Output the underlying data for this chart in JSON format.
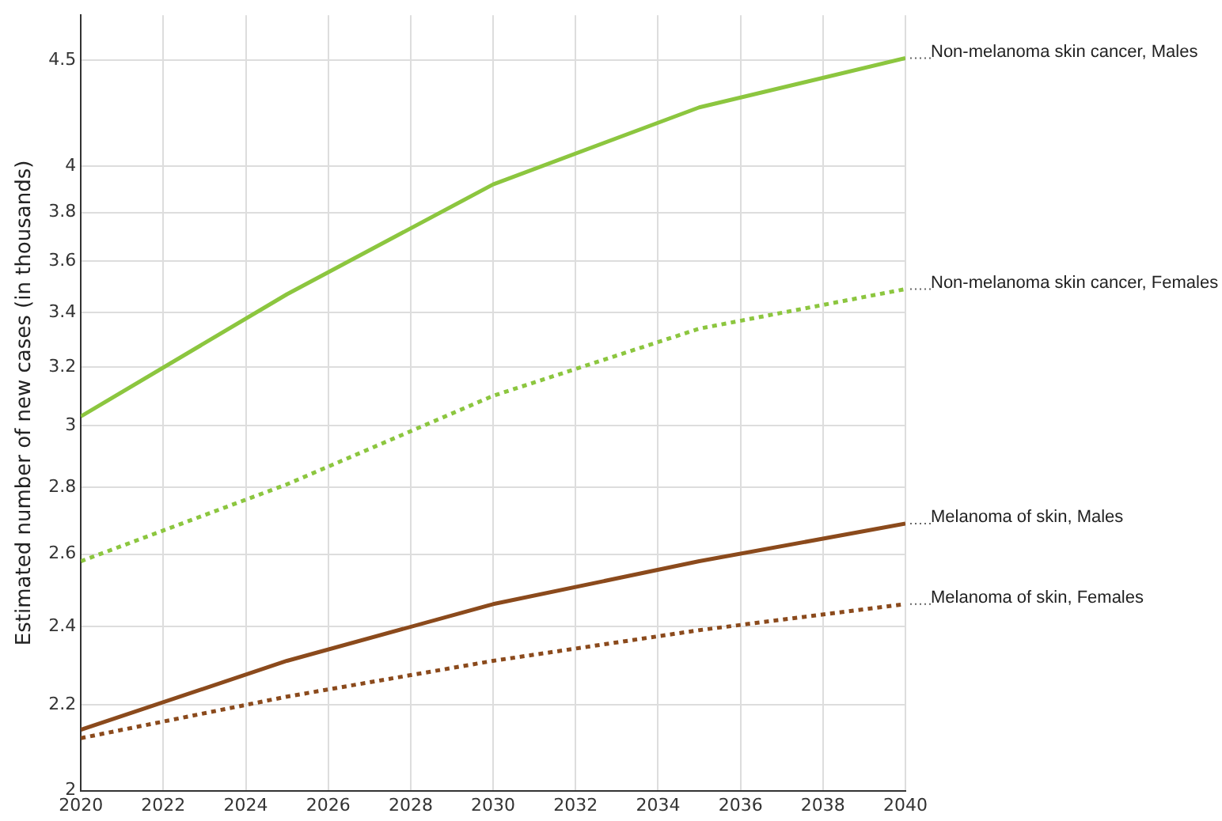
{
  "chart_data": {
    "type": "line",
    "ylabel": "Estimated number of new cases (in thousands)",
    "x": [
      2020,
      2025,
      2030,
      2035,
      2040
    ],
    "series": [
      {
        "name": "Non-melanoma skin cancer, Males",
        "color": "#8cc63f",
        "values": [
          3.03,
          3.47,
          3.92,
          4.27,
          4.51
        ],
        "line_style": "solid"
      },
      {
        "name": "Non-melanoma skin cancer, Females",
        "color": "#8cc63f",
        "values": [
          2.58,
          2.81,
          3.1,
          3.34,
          3.49
        ],
        "line_style": "dotted"
      },
      {
        "name": "Melanoma of skin, Males",
        "color": "#8b4a1c",
        "values": [
          2.14,
          2.31,
          2.46,
          2.58,
          2.69
        ],
        "line_style": "solid"
      },
      {
        "name": "Melanoma of skin, Females",
        "color": "#8b4a1c",
        "values": [
          2.12,
          2.22,
          2.31,
          2.39,
          2.46
        ],
        "line_style": "dotted"
      }
    ],
    "xlim": [
      2020,
      2040
    ],
    "xticks": [
      2020,
      2022,
      2024,
      2026,
      2028,
      2030,
      2032,
      2034,
      2036,
      2038,
      2040
    ],
    "ylim": [
      2,
      4.73
    ],
    "yticks": [
      2,
      2.2,
      2.4,
      2.6,
      2.8,
      3,
      3.2,
      3.4,
      3.6,
      3.8,
      4,
      4.5
    ],
    "log": "y",
    "grid": true,
    "legend": false,
    "marker": "none"
  }
}
